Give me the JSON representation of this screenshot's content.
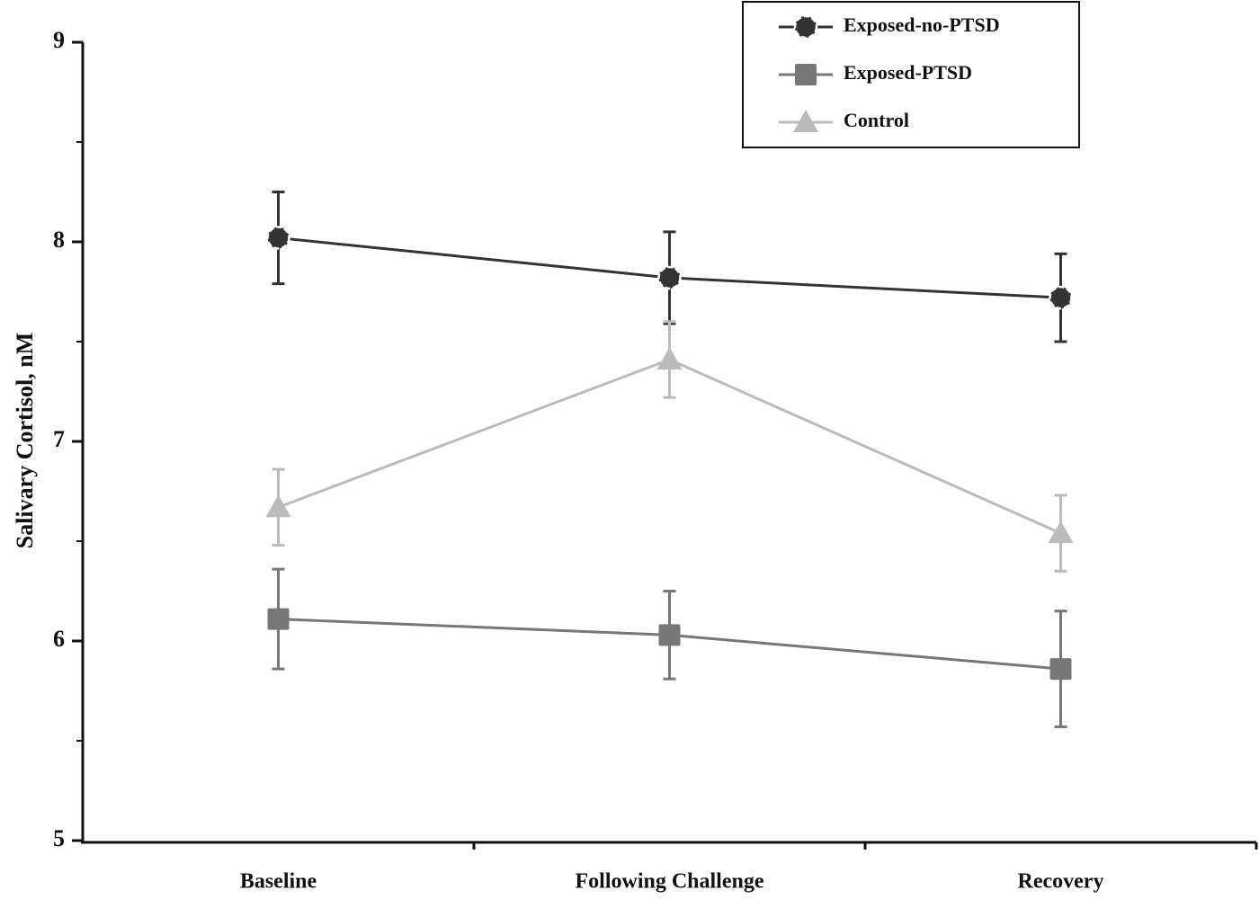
{
  "chart_data": {
    "type": "line",
    "y_label": "Salivary Cortisol, nM",
    "categories": [
      "Baseline",
      "Following Challenge",
      "Recovery"
    ],
    "ylim": [
      5,
      9
    ],
    "yticks": [
      5,
      6,
      7,
      8,
      9
    ],
    "yminorticks": [
      5.5,
      6.5,
      7.5,
      8.5
    ],
    "legend": "top-right",
    "series": [
      {
        "name": "Exposed-no-PTSD",
        "color": "#333333",
        "marker": "circle",
        "values": [
          8.02,
          7.82,
          7.72
        ],
        "errors": [
          0.23,
          0.23,
          0.22
        ]
      },
      {
        "name": "Exposed-PTSD",
        "color": "#777777",
        "marker": "square",
        "values": [
          6.11,
          6.03,
          5.86
        ],
        "errors": [
          0.25,
          0.22,
          0.29
        ]
      },
      {
        "name": "Control",
        "color": "#bbbbbb",
        "marker": "triangle",
        "values": [
          6.67,
          7.41,
          6.54
        ],
        "errors": [
          0.19,
          0.19,
          0.19
        ]
      }
    ]
  }
}
